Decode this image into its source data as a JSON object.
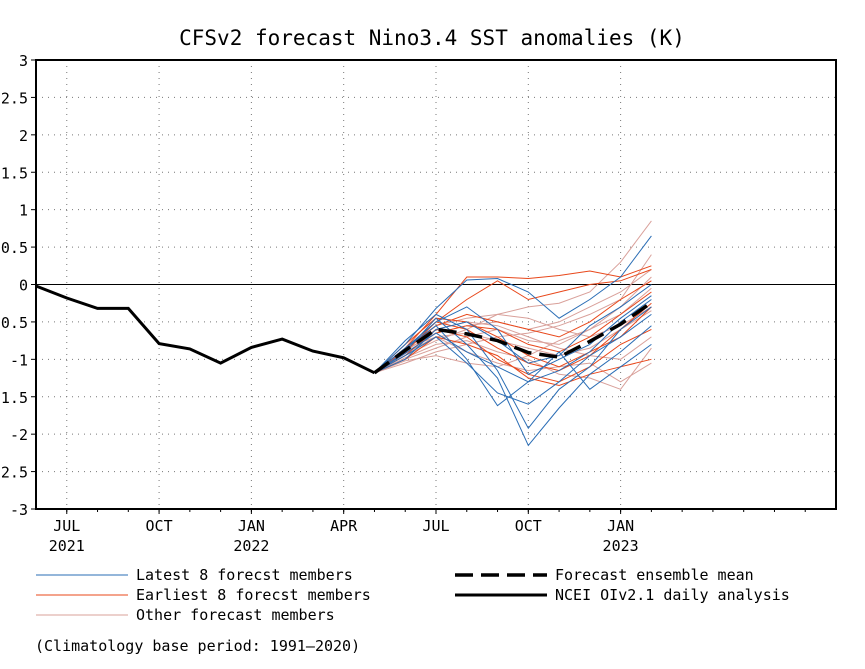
{
  "chart_data": {
    "type": "line",
    "title": "CFSv2 forecast Nino3.4 SST anomalies (K)",
    "title_color": "#ff0000",
    "ylim": [
      -3,
      3
    ],
    "yticks": [
      3,
      2.5,
      2,
      1.5,
      1,
      0.5,
      0,
      -0.5,
      -1,
      -1.5,
      -2,
      -2.5,
      -3
    ],
    "ytick_labels": [
      "3",
      "2.5",
      "2",
      "1.5",
      "1",
      "0.5",
      "0",
      "-0.5",
      "-1",
      "-1.5",
      "-2",
      "-2.5",
      "-3"
    ],
    "xlim": [
      0,
      26.0
    ],
    "xticks": [
      {
        "x": 1,
        "label": "JUL",
        "year": "2021"
      },
      {
        "x": 4,
        "label": "OCT",
        "year": ""
      },
      {
        "x": 7,
        "label": "JAN",
        "year": "2022"
      },
      {
        "x": 10,
        "label": "APR",
        "year": ""
      },
      {
        "x": 13,
        "label": "JUL",
        "year": ""
      },
      {
        "x": 16,
        "label": "OCT",
        "year": ""
      },
      {
        "x": 19,
        "label": "JAN",
        "year": "2023"
      }
    ],
    "grid": true,
    "analysis": {
      "name": "NCEI OIv2.1 daily analysis",
      "color": "#000000",
      "x": [
        0,
        1,
        2,
        3,
        4,
        5,
        6,
        7,
        8,
        9,
        10,
        11
      ],
      "y": [
        -0.02,
        -0.18,
        -0.32,
        -0.32,
        -0.79,
        -0.86,
        -1.05,
        -0.84,
        -0.73,
        -0.89,
        -0.98,
        -1.18
      ]
    },
    "ensemble_mean": {
      "name": "Forecast ensemble mean",
      "color": "#000000",
      "x": [
        11,
        12,
        13,
        14,
        15,
        16,
        17,
        18,
        19,
        20
      ],
      "y": [
        -1.18,
        -0.88,
        -0.6,
        -0.66,
        -0.75,
        -0.91,
        -0.97,
        -0.76,
        -0.53,
        -0.24
      ]
    },
    "members": {
      "x": [
        11,
        12,
        13,
        14,
        15,
        16,
        17,
        18,
        19,
        20
      ],
      "latest": {
        "name": "Latest 8 forecst members",
        "color": "#2a6db5",
        "series": [
          [
            -1.18,
            -0.8,
            -0.32,
            0.06,
            0.08,
            -0.1,
            -0.45,
            -0.2,
            0.1,
            0.65
          ],
          [
            -1.18,
            -0.85,
            -0.55,
            -1.0,
            -1.62,
            -1.3,
            -0.9,
            -1.4,
            -1.1,
            -0.8
          ],
          [
            -1.18,
            -0.9,
            -0.45,
            -0.8,
            -1.25,
            -2.15,
            -1.65,
            -1.2,
            -0.9,
            -0.55
          ],
          [
            -1.18,
            -0.75,
            -0.4,
            -0.6,
            -1.15,
            -1.92,
            -1.4,
            -1.1,
            -0.6,
            -0.3
          ],
          [
            -1.18,
            -0.95,
            -0.7,
            -1.05,
            -1.45,
            -1.6,
            -1.3,
            -0.95,
            -0.7,
            -0.4
          ],
          [
            -1.18,
            -1.0,
            -0.6,
            -0.5,
            -0.75,
            -1.05,
            -0.95,
            -0.55,
            -0.3,
            0.0
          ],
          [
            -1.18,
            -0.85,
            -0.5,
            -0.3,
            -0.6,
            -1.2,
            -1.0,
            -0.8,
            -0.45,
            -0.15
          ],
          [
            -1.18,
            -0.92,
            -0.65,
            -0.9,
            -1.1,
            -1.3,
            -1.15,
            -0.9,
            -0.5,
            -0.2
          ]
        ]
      },
      "earliest": {
        "name": "Earliest 8 forecst members",
        "color": "#e8471a",
        "series": [
          [
            -1.18,
            -0.85,
            -0.4,
            0.1,
            0.1,
            0.08,
            0.12,
            0.18,
            0.1,
            0.25
          ],
          [
            -1.18,
            -0.9,
            -0.5,
            -0.2,
            0.05,
            -0.2,
            -0.1,
            0.0,
            0.05,
            0.2
          ],
          [
            -1.18,
            -0.8,
            -0.45,
            -0.5,
            -0.7,
            -0.95,
            -1.1,
            -0.9,
            -0.7,
            -0.3
          ],
          [
            -1.18,
            -0.95,
            -0.6,
            -0.7,
            -1.0,
            -1.2,
            -1.3,
            -1.1,
            -0.8,
            -0.6
          ],
          [
            -1.18,
            -1.0,
            -0.7,
            -0.8,
            -0.95,
            -1.25,
            -1.35,
            -1.2,
            -1.1,
            -1.0
          ],
          [
            -1.18,
            -0.88,
            -0.55,
            -0.4,
            -0.5,
            -0.6,
            -0.7,
            -0.5,
            -0.2,
            0.05
          ],
          [
            -1.18,
            -0.92,
            -0.65,
            -0.55,
            -0.6,
            -0.8,
            -0.9,
            -0.7,
            -0.4,
            -0.1
          ],
          [
            -1.18,
            -0.85,
            -0.5,
            -0.6,
            -0.85,
            -1.05,
            -1.15,
            -0.95,
            -0.6,
            -0.25
          ]
        ]
      },
      "other": {
        "name": "Other forecast members",
        "color": "#d9a09a",
        "series": [
          [
            -1.18,
            -0.95,
            -0.75,
            -0.6,
            -0.4,
            -0.3,
            -0.25,
            -0.1,
            0.3,
            0.85
          ],
          [
            -1.18,
            -1.0,
            -0.85,
            -0.7,
            -0.6,
            -0.75,
            -0.8,
            -0.6,
            -0.3,
            0.1
          ],
          [
            -1.18,
            -0.9,
            -0.6,
            -0.5,
            -0.55,
            -0.7,
            -0.85,
            -0.95,
            -1.0,
            -0.7
          ],
          [
            -1.18,
            -0.85,
            -0.7,
            -0.9,
            -1.05,
            -1.15,
            -1.1,
            -1.05,
            -1.3,
            -1.05
          ],
          [
            -1.18,
            -1.05,
            -0.9,
            -0.8,
            -0.7,
            -0.65,
            -0.55,
            -0.4,
            -0.2,
            0.4
          ],
          [
            -1.18,
            -0.98,
            -0.8,
            -0.75,
            -0.9,
            -1.0,
            -1.2,
            -1.25,
            -1.4,
            -0.85
          ],
          [
            -1.18,
            -0.88,
            -0.65,
            -0.55,
            -0.5,
            -0.6,
            -0.5,
            -0.3,
            -0.1,
            0.2
          ],
          [
            -1.18,
            -1.02,
            -0.95,
            -1.05,
            -1.1,
            -0.95,
            -0.75,
            -0.6,
            -0.4,
            -0.05
          ],
          [
            -1.18,
            -0.92,
            -0.7,
            -0.65,
            -0.75,
            -0.85,
            -0.95,
            -0.85,
            -0.6,
            -0.35
          ],
          [
            -1.18,
            -0.86,
            -0.55,
            -0.45,
            -0.4,
            -0.45,
            -0.6,
            -0.7,
            -0.55,
            -0.3
          ]
        ]
      }
    },
    "legend": [
      {
        "key": "latest",
        "label": "Latest 8 forecst members",
        "style": "thin",
        "color": "#2a6db5"
      },
      {
        "key": "earliest",
        "label": "Earliest 8 forecst members",
        "style": "thin",
        "color": "#e8471a"
      },
      {
        "key": "other",
        "label": "Other forecast members",
        "style": "thin",
        "color": "#d9a09a"
      },
      {
        "key": "mean",
        "label": "Forecast ensemble mean",
        "style": "dashed",
        "color": "#000000"
      },
      {
        "key": "analysis",
        "label": "NCEI OIv2.1 daily analysis",
        "style": "solid",
        "color": "#000000"
      }
    ],
    "footnote": "(Climatology base period: 1991—2020)"
  }
}
